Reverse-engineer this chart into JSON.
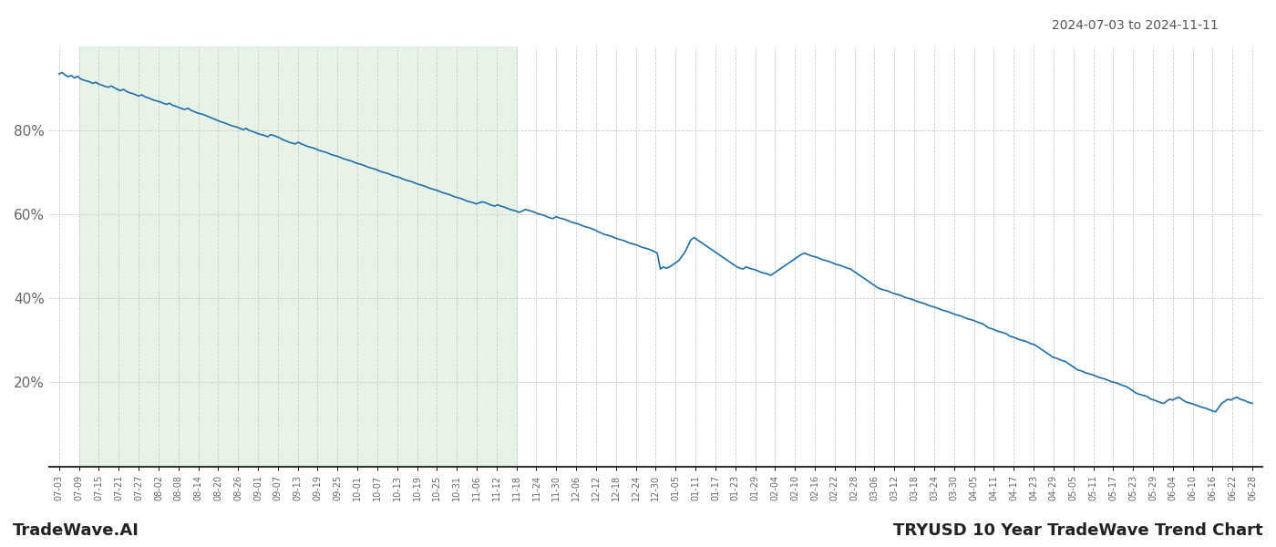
{
  "title_date_range": "2024-07-03 to 2024-11-11",
  "footer_left": "TradeWave.AI",
  "footer_right": "TRYUSD 10 Year TradeWave Trend Chart",
  "line_color": "#1f6fad",
  "line_width": 1.2,
  "shaded_region_color": "#c8e6c9",
  "shaded_region_alpha": 0.45,
  "background_color": "#ffffff",
  "grid_color": "#cccccc",
  "ylim": [
    0,
    100
  ],
  "yticks": [
    20,
    40,
    60,
    80
  ],
  "x_tick_labels": [
    "07-03",
    "07-09",
    "07-15",
    "07-21",
    "07-27",
    "08-02",
    "08-08",
    "08-14",
    "08-20",
    "08-26",
    "09-01",
    "09-07",
    "09-13",
    "09-19",
    "09-25",
    "10-01",
    "10-07",
    "10-13",
    "10-19",
    "10-25",
    "10-31",
    "11-06",
    "11-12",
    "11-18",
    "11-24",
    "11-30",
    "12-06",
    "12-12",
    "12-18",
    "12-24",
    "12-30",
    "01-05",
    "01-11",
    "01-17",
    "01-23",
    "01-29",
    "02-04",
    "02-10",
    "02-16",
    "02-22",
    "02-28",
    "03-06",
    "03-12",
    "03-18",
    "03-24",
    "03-30",
    "04-05",
    "04-11",
    "04-17",
    "04-23",
    "04-29",
    "05-05",
    "05-11",
    "05-17",
    "05-23",
    "05-29",
    "06-04",
    "06-10",
    "06-16",
    "06-22",
    "06-28"
  ],
  "shaded_start_label": "07-09",
  "shaded_end_label": "11-18",
  "y_values": [
    93.5,
    93.8,
    93.2,
    92.8,
    93.1,
    92.5,
    92.9,
    92.3,
    92.0,
    91.8,
    91.6,
    91.2,
    91.5,
    91.0,
    90.8,
    90.5,
    90.3,
    90.6,
    90.2,
    89.8,
    89.5,
    89.8,
    89.3,
    89.0,
    88.8,
    88.5,
    88.2,
    88.5,
    88.0,
    87.8,
    87.5,
    87.2,
    87.0,
    86.8,
    86.5,
    86.2,
    86.5,
    86.0,
    85.8,
    85.5,
    85.2,
    85.0,
    85.3,
    84.8,
    84.5,
    84.2,
    84.0,
    83.8,
    83.5,
    83.2,
    82.9,
    82.6,
    82.3,
    82.0,
    81.8,
    81.5,
    81.2,
    81.0,
    80.8,
    80.5,
    80.2,
    80.5,
    80.0,
    79.8,
    79.5,
    79.2,
    79.0,
    78.8,
    78.5,
    79.0,
    78.8,
    78.5,
    78.2,
    77.8,
    77.5,
    77.2,
    77.0,
    76.8,
    77.2,
    76.8,
    76.5,
    76.2,
    76.0,
    75.8,
    75.5,
    75.2,
    75.0,
    74.8,
    74.5,
    74.2,
    74.0,
    73.8,
    73.5,
    73.2,
    73.0,
    72.8,
    72.5,
    72.2,
    72.0,
    71.8,
    71.5,
    71.2,
    71.0,
    70.8,
    70.5,
    70.2,
    70.0,
    69.8,
    69.5,
    69.2,
    69.0,
    68.8,
    68.5,
    68.2,
    68.0,
    67.8,
    67.5,
    67.2,
    67.0,
    66.8,
    66.5,
    66.2,
    66.0,
    65.8,
    65.5,
    65.2,
    65.0,
    64.8,
    64.5,
    64.2,
    64.0,
    63.8,
    63.5,
    63.2,
    63.0,
    62.8,
    62.5,
    62.8,
    63.0,
    62.8,
    62.5,
    62.2,
    62.0,
    62.3,
    62.0,
    61.8,
    61.5,
    61.2,
    61.0,
    60.8,
    60.5,
    60.8,
    61.2,
    61.0,
    60.8,
    60.5,
    60.2,
    60.0,
    59.8,
    59.5,
    59.2,
    59.0,
    59.5,
    59.2,
    59.0,
    58.8,
    58.5,
    58.2,
    58.0,
    57.8,
    57.5,
    57.2,
    57.0,
    56.8,
    56.5,
    56.2,
    55.8,
    55.5,
    55.2,
    55.0,
    54.8,
    54.5,
    54.2,
    54.0,
    53.8,
    53.5,
    53.2,
    53.0,
    52.8,
    52.5,
    52.2,
    52.0,
    51.8,
    51.5,
    51.2,
    50.8,
    47.0,
    47.5,
    47.2,
    47.5,
    48.0,
    48.5,
    49.0,
    50.0,
    51.0,
    52.5,
    54.0,
    54.5,
    54.0,
    53.5,
    53.0,
    52.5,
    52.0,
    51.5,
    51.0,
    50.5,
    50.0,
    49.5,
    49.0,
    48.5,
    48.0,
    47.5,
    47.2,
    47.0,
    47.5,
    47.2,
    47.0,
    46.8,
    46.5,
    46.2,
    46.0,
    45.8,
    45.5,
    46.0,
    46.5,
    47.0,
    47.5,
    48.0,
    48.5,
    49.0,
    49.5,
    50.0,
    50.5,
    50.8,
    50.5,
    50.2,
    50.0,
    49.8,
    49.5,
    49.2,
    49.0,
    48.8,
    48.5,
    48.2,
    48.0,
    47.8,
    47.5,
    47.2,
    47.0,
    46.5,
    46.0,
    45.5,
    45.0,
    44.5,
    44.0,
    43.5,
    43.0,
    42.5,
    42.2,
    42.0,
    41.8,
    41.5,
    41.2,
    41.0,
    40.8,
    40.5,
    40.2,
    40.0,
    39.8,
    39.5,
    39.2,
    39.0,
    38.8,
    38.5,
    38.2,
    38.0,
    37.8,
    37.5,
    37.2,
    37.0,
    36.8,
    36.5,
    36.2,
    36.0,
    35.8,
    35.5,
    35.2,
    35.0,
    34.8,
    34.5,
    34.2,
    34.0,
    33.5,
    33.0,
    32.8,
    32.5,
    32.2,
    32.0,
    31.8,
    31.5,
    31.0,
    30.8,
    30.5,
    30.2,
    30.0,
    29.8,
    29.5,
    29.2,
    29.0,
    28.5,
    28.0,
    27.5,
    27.0,
    26.5,
    26.0,
    25.8,
    25.5,
    25.2,
    25.0,
    24.5,
    24.0,
    23.5,
    23.0,
    22.8,
    22.5,
    22.2,
    22.0,
    21.8,
    21.5,
    21.2,
    21.0,
    20.8,
    20.5,
    20.2,
    20.0,
    19.8,
    19.5,
    19.2,
    19.0,
    18.5,
    18.0,
    17.5,
    17.2,
    17.0,
    16.8,
    16.5,
    16.0,
    15.8,
    15.5,
    15.2,
    15.0,
    15.5,
    16.0,
    15.8,
    16.2,
    16.5,
    16.0,
    15.5,
    15.2,
    15.0,
    14.8,
    14.5,
    14.2,
    14.0,
    13.8,
    13.5,
    13.2,
    13.0,
    14.0,
    15.0,
    15.5,
    16.0,
    15.8,
    16.2,
    16.5,
    16.0,
    15.8,
    15.5,
    15.2,
    15.0
  ]
}
